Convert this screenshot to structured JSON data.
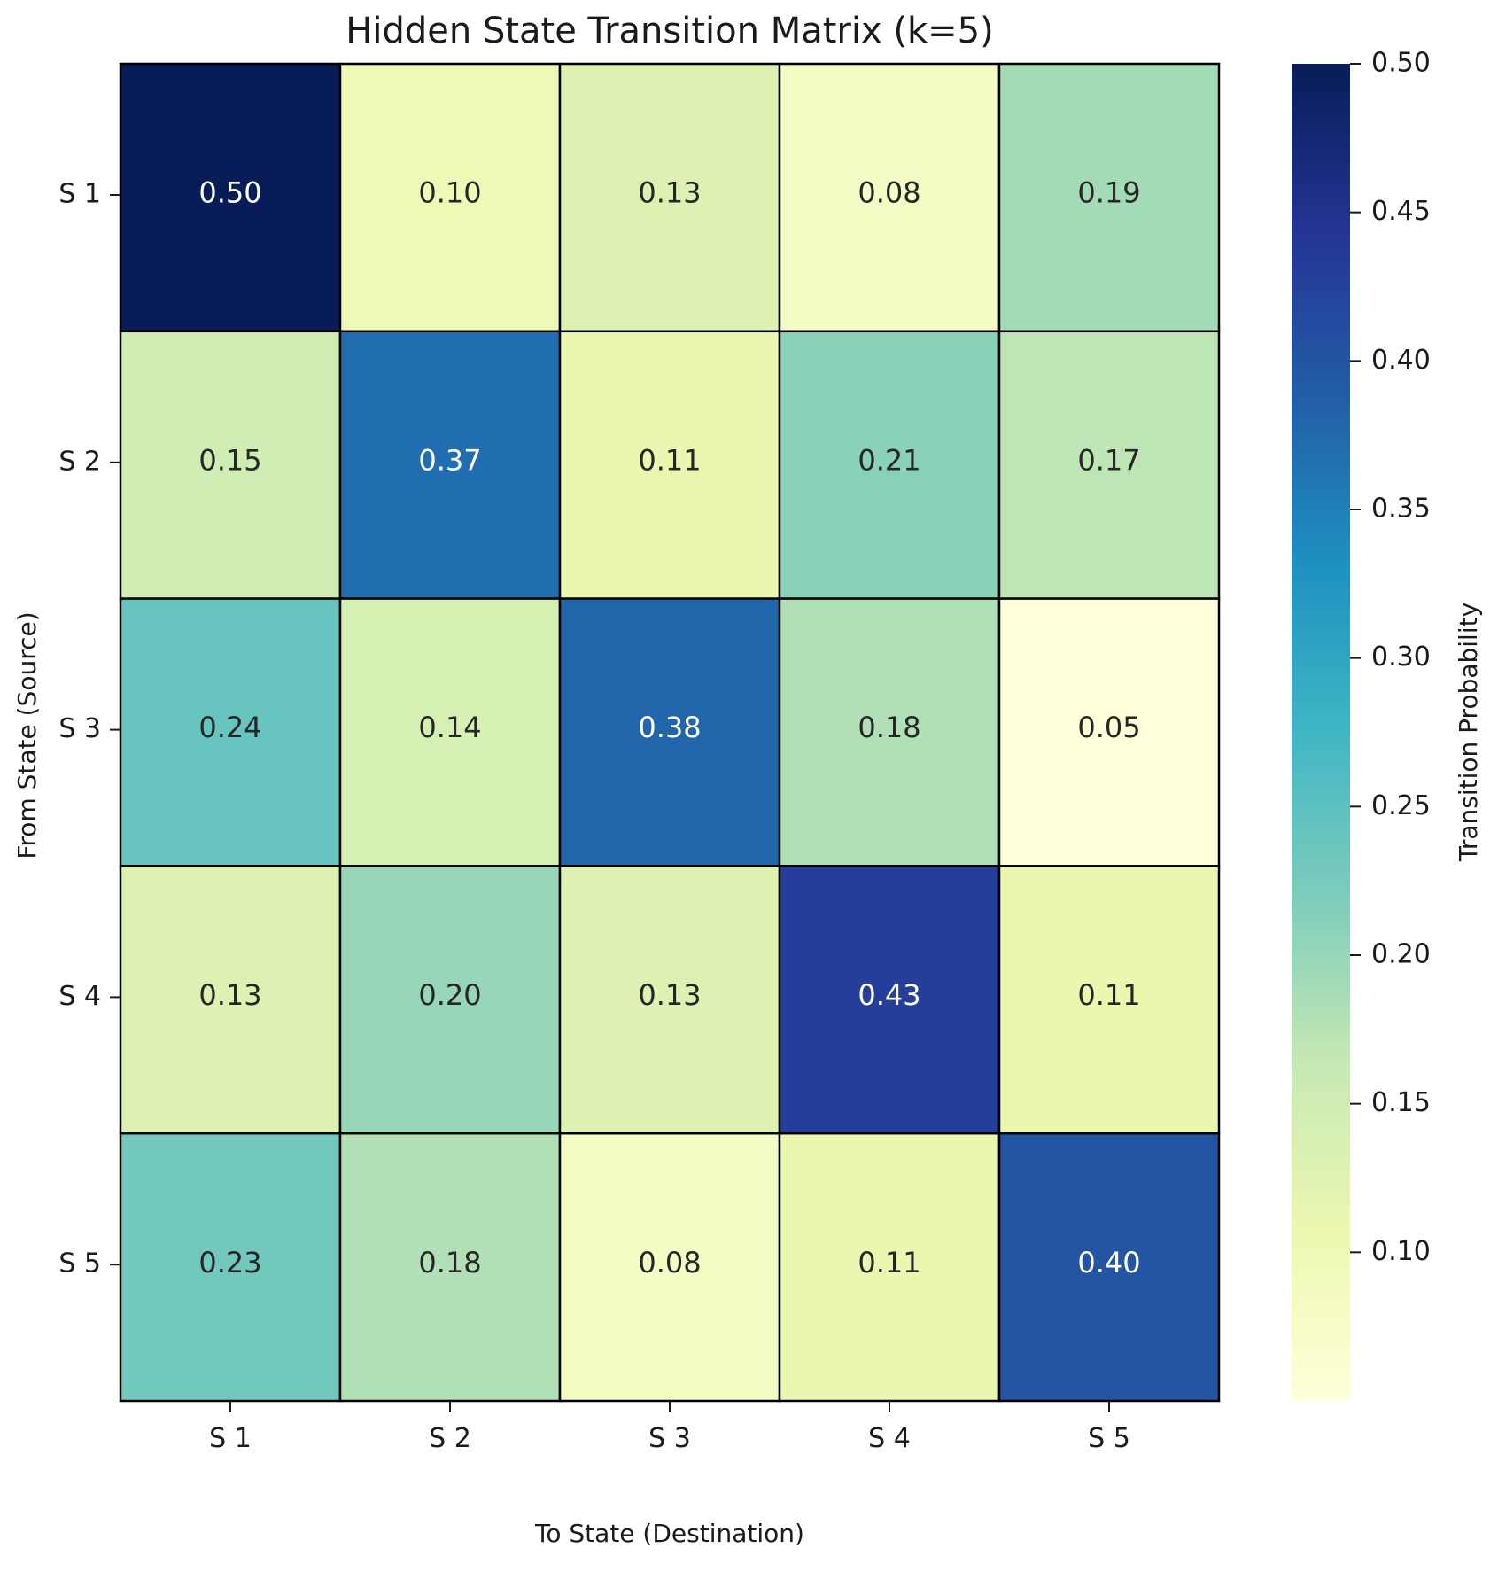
{
  "chart_data": {
    "type": "heatmap",
    "title": "Hidden State Transition Matrix (k=5)",
    "xlabel": "To State (Destination)",
    "ylabel": "From State (Source)",
    "x_categories": [
      "S 1",
      "S 2",
      "S 3",
      "S 4",
      "S 5"
    ],
    "y_categories": [
      "S 1",
      "S 2",
      "S 3",
      "S 4",
      "S 5"
    ],
    "values": [
      [
        0.5,
        0.1,
        0.13,
        0.08,
        0.19
      ],
      [
        0.15,
        0.37,
        0.11,
        0.21,
        0.17
      ],
      [
        0.24,
        0.14,
        0.38,
        0.18,
        0.05
      ],
      [
        0.13,
        0.2,
        0.13,
        0.43,
        0.11
      ],
      [
        0.23,
        0.18,
        0.08,
        0.11,
        0.4
      ]
    ],
    "value_labels": [
      [
        "0.50",
        "0.10",
        "0.13",
        "0.08",
        "0.19"
      ],
      [
        "0.15",
        "0.37",
        "0.11",
        "0.21",
        "0.17"
      ],
      [
        "0.24",
        "0.14",
        "0.38",
        "0.18",
        "0.05"
      ],
      [
        "0.13",
        "0.20",
        "0.13",
        "0.43",
        "0.11"
      ],
      [
        "0.23",
        "0.18",
        "0.08",
        "0.11",
        "0.40"
      ]
    ],
    "colorbar": {
      "label": "Transition Probability",
      "vmin": 0.05,
      "vmax": 0.5,
      "ticks": [
        0.1,
        0.15,
        0.2,
        0.25,
        0.3,
        0.35,
        0.4,
        0.45,
        0.5
      ],
      "tick_labels": [
        "0.10",
        "0.15",
        "0.20",
        "0.25",
        "0.30",
        "0.35",
        "0.40",
        "0.45",
        "0.50"
      ],
      "colormap": "YlGnBu"
    },
    "colormap_stops": [
      "#ffffd9",
      "#edf8b1",
      "#c7e9b4",
      "#7fcdbb",
      "#41b6c4",
      "#1d91c0",
      "#225ea8",
      "#253494",
      "#081d58"
    ]
  }
}
